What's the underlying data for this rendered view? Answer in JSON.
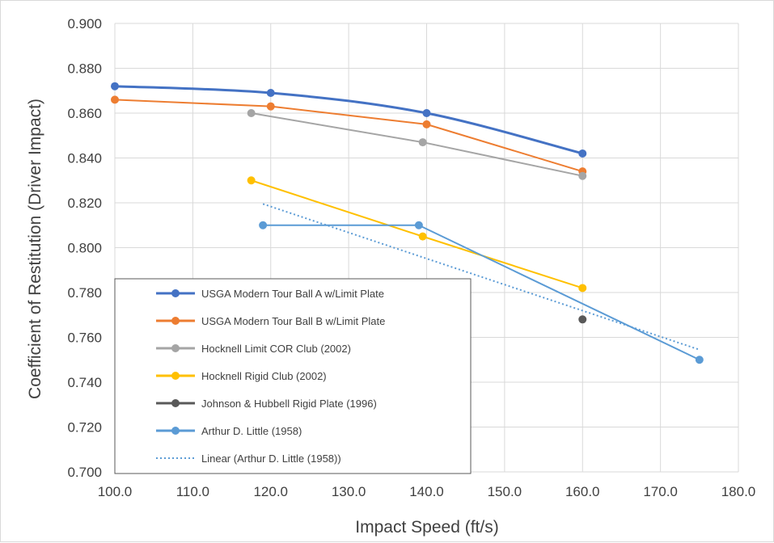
{
  "chart_data": {
    "type": "line",
    "title": "",
    "xlabel": "Impact Speed (ft/s)",
    "ylabel": "Coefficient of Restitution (Driver Impact)",
    "xlim": [
      100,
      180
    ],
    "ylim": [
      0.7,
      0.9
    ],
    "x_ticks": [
      100,
      110,
      120,
      130,
      140,
      150,
      160,
      170,
      180
    ],
    "x_tick_labels": [
      "100.0",
      "110.0",
      "120.0",
      "130.0",
      "140.0",
      "150.0",
      "160.0",
      "170.0",
      "180.0"
    ],
    "y_ticks": [
      0.7,
      0.72,
      0.74,
      0.76,
      0.78,
      0.8,
      0.82,
      0.84,
      0.86,
      0.88,
      0.9
    ],
    "y_tick_labels": [
      "0.700",
      "0.720",
      "0.740",
      "0.760",
      "0.780",
      "0.800",
      "0.820",
      "0.840",
      "0.860",
      "0.880",
      "0.900"
    ],
    "grid": true,
    "legend_position": "bottom-left",
    "series": [
      {
        "name": "USGA Modern Tour Ball A w/Limit Plate",
        "color": "#4472c4",
        "style": "solid",
        "width": 3,
        "smooth": true,
        "points": [
          [
            100,
            0.872
          ],
          [
            120,
            0.869
          ],
          [
            140,
            0.86
          ],
          [
            160,
            0.842
          ]
        ]
      },
      {
        "name": "USGA Modern Tour Ball B w/Limit Plate",
        "color": "#ed7d31",
        "style": "solid",
        "width": 2,
        "smooth": false,
        "points": [
          [
            100,
            0.866
          ],
          [
            120,
            0.863
          ],
          [
            140,
            0.855
          ],
          [
            160,
            0.834
          ]
        ]
      },
      {
        "name": "Hocknell Limit COR Club (2002)",
        "color": "#a5a5a5",
        "style": "solid",
        "width": 2,
        "smooth": false,
        "points": [
          [
            117.5,
            0.86
          ],
          [
            139.5,
            0.847
          ],
          [
            160,
            0.832
          ]
        ]
      },
      {
        "name": "Hocknell Rigid Club (2002)",
        "color": "#ffc000",
        "style": "solid",
        "width": 2,
        "smooth": false,
        "points": [
          [
            117.5,
            0.83
          ],
          [
            139.5,
            0.805
          ],
          [
            160,
            0.782
          ]
        ]
      },
      {
        "name": "Johnson & Hubbell  Rigid Plate (1996)",
        "color": "#595959",
        "style": "none",
        "width": 2,
        "smooth": false,
        "points": [
          [
            160,
            0.768
          ]
        ]
      },
      {
        "name": "Arthur D. Little (1958)",
        "color": "#5b9bd5",
        "style": "solid",
        "width": 2,
        "smooth": false,
        "points": [
          [
            119,
            0.81
          ],
          [
            139,
            0.81
          ],
          [
            175,
            0.75
          ]
        ]
      },
      {
        "name": "Linear (Arthur D. Little (1958))",
        "color": "#5b9bd5",
        "style": "dotted",
        "width": 2,
        "smooth": false,
        "markers": false,
        "points": [
          [
            119,
            0.8195
          ],
          [
            175,
            0.7545
          ]
        ]
      }
    ]
  }
}
